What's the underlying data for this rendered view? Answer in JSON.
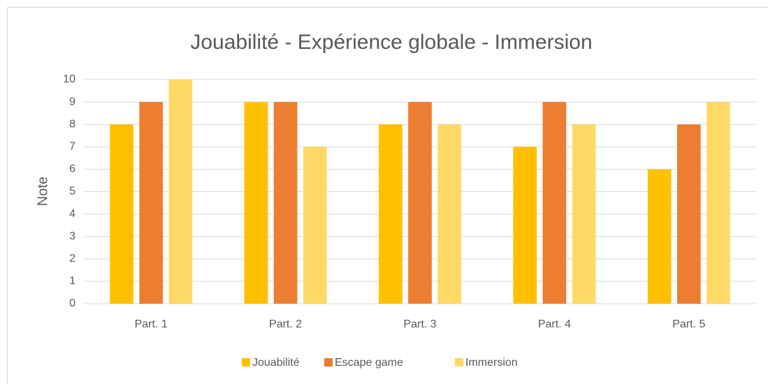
{
  "chart_data": {
    "type": "bar",
    "title": "Jouabilité - Expérience globale - Immersion",
    "y_label": "Note",
    "categories": [
      "Part. 1",
      "Part. 2",
      "Part. 3",
      "Part. 4",
      "Part. 5"
    ],
    "series": [
      {
        "name": "Jouabilité",
        "color": "#FFC000",
        "values": [
          8,
          9,
          8,
          7,
          6
        ]
      },
      {
        "name": "Escape game",
        "color": "#ED7D31",
        "values": [
          9,
          9,
          9,
          9,
          8
        ]
      },
      {
        "name": "Immersion",
        "color": "#FFD966",
        "values": [
          10,
          7,
          8,
          8,
          9
        ]
      }
    ],
    "ylim": [
      0,
      10
    ],
    "yticks": [
      0,
      1,
      2,
      3,
      4,
      5,
      6,
      7,
      8,
      9,
      10
    ],
    "grid": true,
    "legend": "bottom"
  }
}
